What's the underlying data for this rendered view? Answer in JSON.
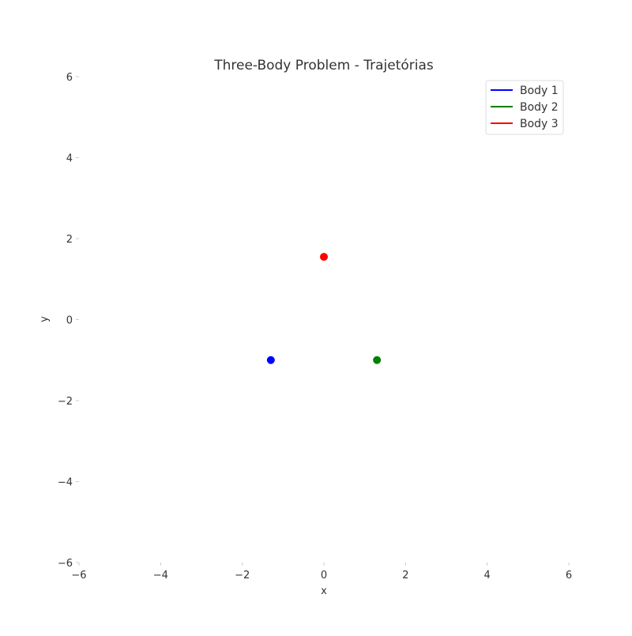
{
  "chart_data": {
    "type": "scatter",
    "title": "Three-Body Problem - Trajetórias",
    "xlabel": "x",
    "ylabel": "y",
    "xlim": [
      -6,
      6
    ],
    "ylim": [
      -6,
      6
    ],
    "xticks": [
      -6,
      -4,
      -2,
      0,
      2,
      4,
      6
    ],
    "yticks": [
      -6,
      -4,
      -2,
      0,
      2,
      4,
      6
    ],
    "xtick_labels": [
      "−6",
      "−4",
      "−2",
      "0",
      "2",
      "4",
      "6"
    ],
    "ytick_labels": [
      "−6",
      "−4",
      "−2",
      "0",
      "2",
      "4",
      "6"
    ],
    "grid": false,
    "legend_position": "top-right",
    "series": [
      {
        "name": "Body 1",
        "color": "#0000ff",
        "x": [
          -1.3
        ],
        "y": [
          -1.0
        ]
      },
      {
        "name": "Body 2",
        "color": "#008000",
        "x": [
          1.3
        ],
        "y": [
          -1.0
        ]
      },
      {
        "name": "Body 3",
        "color": "#ff0000",
        "x": [
          0.0
        ],
        "y": [
          1.55
        ]
      }
    ]
  }
}
